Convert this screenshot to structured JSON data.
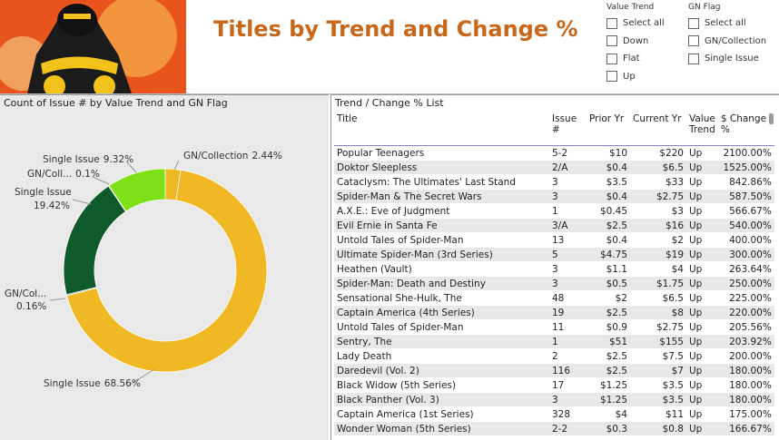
{
  "header": {
    "title": "Titles by Trend and Change %"
  },
  "slicers": [
    {
      "title": "Value Trend",
      "items": [
        "Select all",
        "Down",
        "Flat",
        "Up"
      ]
    },
    {
      "title": "GN Flag",
      "items": [
        "Select all",
        "GN/Collection",
        "Single Issue"
      ]
    }
  ],
  "chart_data": {
    "type": "donut",
    "title": "Count of Issue # by Value Trend and GN Flag",
    "categories": [
      "GN/Collection",
      "Single Issue",
      "GN/Col...",
      "Single Issue",
      "GN/Coll...",
      "Single Issue"
    ],
    "values": [
      2.44,
      68.56,
      0.16,
      19.42,
      0.1,
      9.32
    ],
    "value_labels": [
      "2.44%",
      "68.56%",
      "0.16%",
      "19.42%",
      "0.1%",
      "9.32%"
    ],
    "colors": [
      "#f0b823",
      "#f0b823",
      "#0f5a2b",
      "#0f5a2b",
      "#7ee016",
      "#7ee016"
    ]
  },
  "table": {
    "title": "Trend / Change % List",
    "columns": [
      "Title",
      "Issue #",
      "Prior Yr",
      "Current Yr",
      "Value Trend",
      "$ Change %"
    ],
    "rows": [
      [
        "Popular Teenagers",
        "5-2",
        "$10",
        "$220",
        "Up",
        "2100.00%"
      ],
      [
        "Doktor Sleepless",
        "2/A",
        "$0.4",
        "$6.5",
        "Up",
        "1525.00%"
      ],
      [
        "Cataclysm: The Ultimates' Last Stand",
        "3",
        "$3.5",
        "$33",
        "Up",
        "842.86%"
      ],
      [
        "Spider-Man & The Secret Wars",
        "3",
        "$0.4",
        "$2.75",
        "Up",
        "587.50%"
      ],
      [
        "A.X.E.: Eve of Judgment",
        "1",
        "$0.45",
        "$3",
        "Up",
        "566.67%"
      ],
      [
        "Evil Ernie in Santa Fe",
        "3/A",
        "$2.5",
        "$16",
        "Up",
        "540.00%"
      ],
      [
        "Untold Tales of Spider-Man",
        "13",
        "$0.4",
        "$2",
        "Up",
        "400.00%"
      ],
      [
        "Ultimate Spider-Man (3rd Series)",
        "5",
        "$4.75",
        "$19",
        "Up",
        "300.00%"
      ],
      [
        "Heathen (Vault)",
        "3",
        "$1.1",
        "$4",
        "Up",
        "263.64%"
      ],
      [
        "Spider-Man: Death and Destiny",
        "3",
        "$0.5",
        "$1.75",
        "Up",
        "250.00%"
      ],
      [
        "Sensational She-Hulk, The",
        "48",
        "$2",
        "$6.5",
        "Up",
        "225.00%"
      ],
      [
        "Captain America (4th Series)",
        "19",
        "$2.5",
        "$8",
        "Up",
        "220.00%"
      ],
      [
        "Untold Tales of Spider-Man",
        "11",
        "$0.9",
        "$2.75",
        "Up",
        "205.56%"
      ],
      [
        "Sentry, The",
        "1",
        "$51",
        "$155",
        "Up",
        "203.92%"
      ],
      [
        "Lady Death",
        "2",
        "$2.5",
        "$7.5",
        "Up",
        "200.00%"
      ],
      [
        "Daredevil (Vol. 2)",
        "116",
        "$2.5",
        "$7",
        "Up",
        "180.00%"
      ],
      [
        "Black Widow (5th Series)",
        "17",
        "$1.25",
        "$3.5",
        "Up",
        "180.00%"
      ],
      [
        "Black Panther (Vol. 3)",
        "3",
        "$1.25",
        "$3.5",
        "Up",
        "180.00%"
      ],
      [
        "Captain America (1st Series)",
        "328",
        "$4",
        "$11",
        "Up",
        "175.00%"
      ],
      [
        "Wonder Woman (5th Series)",
        "2-2",
        "$0.3",
        "$0.8",
        "Up",
        "166.67%"
      ]
    ]
  }
}
